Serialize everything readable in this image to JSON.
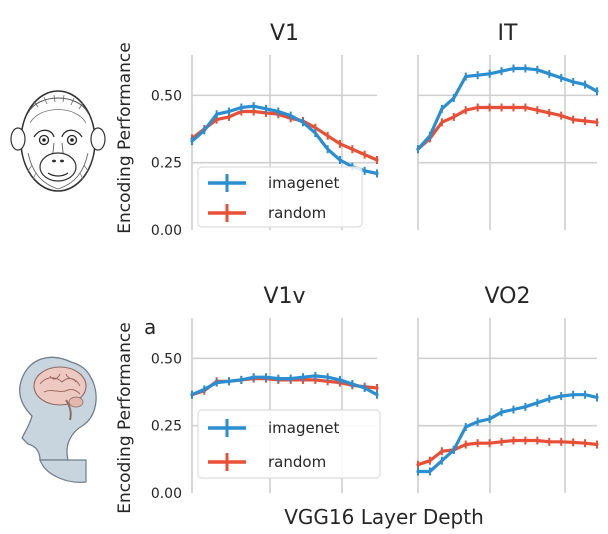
{
  "figure": {
    "ylabel": "Encoding Performance",
    "xlabel": "VGG16 Layer Depth",
    "stray_label": "a",
    "colors": {
      "imagenet": "#2a8ed0",
      "random": "#e84f36"
    },
    "icons": [
      "monkey-face-illustration",
      "human-head-brain-illustration"
    ]
  },
  "chart_data": [
    {
      "type": "line",
      "title": "V1",
      "x": [
        1,
        2,
        3,
        4,
        5,
        6,
        7,
        8,
        9,
        10,
        11,
        12,
        13,
        14,
        15,
        16
      ],
      "xlim": [
        1,
        16
      ],
      "ylim": [
        0,
        0.65
      ],
      "yticks": [
        0.0,
        0.25,
        0.5
      ],
      "ytick_labels": [
        "0.00",
        "0.25",
        "0.50"
      ],
      "grid": true,
      "legend": {
        "placement": "lower-left",
        "entries": [
          "imagenet",
          "random"
        ]
      },
      "series": [
        {
          "name": "imagenet",
          "values": [
            0.33,
            0.37,
            0.43,
            0.44,
            0.455,
            0.46,
            0.45,
            0.44,
            0.425,
            0.4,
            0.36,
            0.3,
            0.26,
            0.235,
            0.22,
            0.21
          ]
        },
        {
          "name": "random",
          "values": [
            0.34,
            0.375,
            0.41,
            0.42,
            0.44,
            0.44,
            0.435,
            0.43,
            0.415,
            0.405,
            0.38,
            0.35,
            0.32,
            0.3,
            0.28,
            0.26
          ]
        }
      ]
    },
    {
      "type": "line",
      "title": "IT",
      "x": [
        1,
        2,
        3,
        4,
        5,
        6,
        7,
        8,
        9,
        10,
        11,
        12,
        13,
        14,
        15,
        16
      ],
      "xlim": [
        1,
        16
      ],
      "ylim": [
        0,
        0.65
      ],
      "yticks": [
        0.0,
        0.25,
        0.5
      ],
      "grid": true,
      "series": [
        {
          "name": "imagenet",
          "values": [
            0.3,
            0.35,
            0.45,
            0.49,
            0.57,
            0.575,
            0.58,
            0.59,
            0.6,
            0.6,
            0.595,
            0.58,
            0.565,
            0.55,
            0.54,
            0.515
          ]
        },
        {
          "name": "random",
          "values": [
            0.3,
            0.34,
            0.4,
            0.42,
            0.445,
            0.455,
            0.455,
            0.455,
            0.455,
            0.455,
            0.445,
            0.435,
            0.425,
            0.41,
            0.405,
            0.4
          ]
        }
      ]
    },
    {
      "type": "line",
      "title": "V1v",
      "x": [
        1,
        2,
        3,
        4,
        5,
        6,
        7,
        8,
        9,
        10,
        11,
        12,
        13,
        14,
        15,
        16
      ],
      "xlim": [
        1,
        16
      ],
      "ylim": [
        0,
        0.65
      ],
      "yticks": [
        0.0,
        0.25,
        0.5
      ],
      "ytick_labels": [
        "0.00",
        "0.25",
        "0.50"
      ],
      "grid": true,
      "legend": {
        "placement": "lower-left",
        "entries": [
          "imagenet",
          "random"
        ]
      },
      "series": [
        {
          "name": "imagenet",
          "values": [
            0.365,
            0.385,
            0.41,
            0.415,
            0.42,
            0.43,
            0.43,
            0.425,
            0.425,
            0.43,
            0.435,
            0.43,
            0.42,
            0.405,
            0.39,
            0.365
          ]
        },
        {
          "name": "random",
          "values": [
            0.365,
            0.38,
            0.415,
            0.415,
            0.42,
            0.425,
            0.425,
            0.42,
            0.42,
            0.42,
            0.42,
            0.415,
            0.41,
            0.4,
            0.395,
            0.39
          ]
        }
      ]
    },
    {
      "type": "line",
      "title": "VO2",
      "x": [
        1,
        2,
        3,
        4,
        5,
        6,
        7,
        8,
        9,
        10,
        11,
        12,
        13,
        14,
        15,
        16
      ],
      "xlim": [
        1,
        16
      ],
      "ylim": [
        0,
        0.65
      ],
      "yticks": [
        0.0,
        0.25,
        0.5
      ],
      "grid": true,
      "series": [
        {
          "name": "imagenet",
          "values": [
            0.08,
            0.08,
            0.12,
            0.16,
            0.245,
            0.265,
            0.275,
            0.3,
            0.31,
            0.32,
            0.335,
            0.35,
            0.36,
            0.365,
            0.365,
            0.355
          ]
        },
        {
          "name": "random",
          "values": [
            0.105,
            0.12,
            0.155,
            0.16,
            0.18,
            0.185,
            0.185,
            0.19,
            0.195,
            0.195,
            0.195,
            0.19,
            0.19,
            0.188,
            0.185,
            0.18
          ]
        }
      ]
    }
  ]
}
